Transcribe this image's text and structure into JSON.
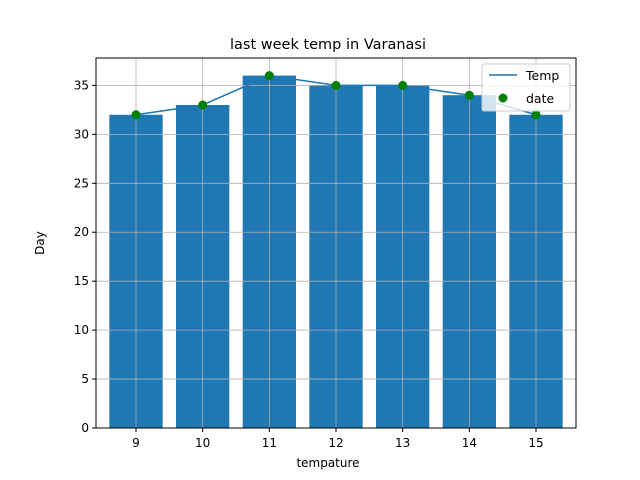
{
  "chart_data": {
    "type": "bar",
    "title": "last week temp in Varanasi",
    "xlabel": "tempature",
    "ylabel": "Day",
    "categories": [
      "9",
      "10",
      "11",
      "12",
      "13",
      "14",
      "15"
    ],
    "x": [
      9,
      10,
      11,
      12,
      13,
      14,
      15
    ],
    "series": [
      {
        "name": "Temp",
        "kind": "line",
        "values": [
          32,
          33,
          36,
          35,
          35,
          34,
          32
        ],
        "color": "#1f77b4"
      },
      {
        "name": "date",
        "kind": "scatter",
        "values": [
          32,
          33,
          36,
          35,
          35,
          34,
          32
        ],
        "color": "#008000"
      },
      {
        "kind": "bar",
        "values": [
          32,
          33,
          36,
          35,
          35,
          34,
          32
        ],
        "color": "#1f77b4"
      }
    ],
    "xlim": [
      8.4,
      15.6
    ],
    "ylim": [
      0,
      37.8
    ],
    "yticks": [
      0,
      5,
      10,
      15,
      20,
      25,
      30,
      35
    ],
    "grid": true,
    "legend": {
      "placement": "top-right",
      "entries": [
        "Temp",
        "date"
      ]
    }
  }
}
